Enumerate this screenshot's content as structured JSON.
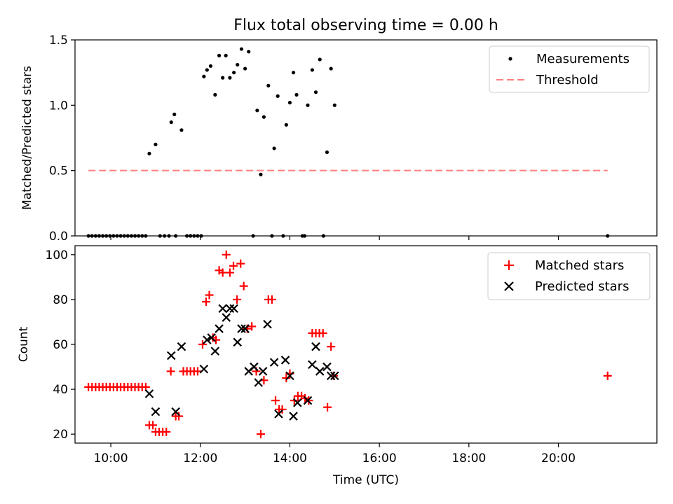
{
  "title": "Flux total observing time = 0.00 h",
  "chart_data": [
    {
      "type": "scatter",
      "ylabel": "Matched/Predicted stars",
      "xlabel": "",
      "xlim": [
        9.2,
        22.2
      ],
      "ylim": [
        0,
        1.5
      ],
      "yticks": [
        0,
        0.5,
        1.0,
        1.5
      ],
      "ytick_labels": [
        "0.0",
        "0.5",
        "1.0",
        "1.5"
      ],
      "xticks": [
        10,
        12,
        14,
        16,
        18,
        20
      ],
      "legend_position": "top-right",
      "threshold": {
        "name": "Threshold",
        "value": 0.5,
        "x": [
          9.5,
          21.1
        ],
        "color": "#ff7f7f"
      },
      "measurements": {
        "name": "Measurements",
        "color": "#000000",
        "points": [
          [
            9.5,
            0
          ],
          [
            9.58,
            0
          ],
          [
            9.66,
            0
          ],
          [
            9.74,
            0
          ],
          [
            9.82,
            0
          ],
          [
            9.9,
            0
          ],
          [
            9.98,
            0
          ],
          [
            10.06,
            0
          ],
          [
            10.14,
            0
          ],
          [
            10.22,
            0
          ],
          [
            10.3,
            0
          ],
          [
            10.38,
            0
          ],
          [
            10.46,
            0
          ],
          [
            10.54,
            0
          ],
          [
            10.62,
            0
          ],
          [
            10.7,
            0
          ],
          [
            10.78,
            0
          ],
          [
            10.86,
            0.63
          ],
          [
            11.0,
            0.7
          ],
          [
            11.1,
            0
          ],
          [
            11.2,
            0
          ],
          [
            11.3,
            0
          ],
          [
            11.35,
            0.87
          ],
          [
            11.42,
            0.93
          ],
          [
            11.58,
            0.81
          ],
          [
            11.45,
            0
          ],
          [
            11.7,
            0
          ],
          [
            11.78,
            0
          ],
          [
            11.86,
            0
          ],
          [
            11.94,
            0
          ],
          [
            12.02,
            0
          ],
          [
            12.08,
            1.22
          ],
          [
            12.15,
            1.27
          ],
          [
            12.23,
            1.3
          ],
          [
            12.33,
            1.08
          ],
          [
            12.42,
            1.38
          ],
          [
            12.5,
            1.21
          ],
          [
            12.57,
            1.38
          ],
          [
            12.66,
            1.21
          ],
          [
            12.75,
            1.25
          ],
          [
            12.83,
            1.31
          ],
          [
            12.92,
            1.43
          ],
          [
            13.0,
            1.28
          ],
          [
            13.08,
            1.41
          ],
          [
            13.18,
            0
          ],
          [
            13.27,
            0.96
          ],
          [
            13.35,
            0.47
          ],
          [
            13.42,
            0.91
          ],
          [
            13.52,
            1.15
          ],
          [
            13.6,
            0
          ],
          [
            13.65,
            0.67
          ],
          [
            13.73,
            1.07
          ],
          [
            13.85,
            0
          ],
          [
            13.92,
            0.85
          ],
          [
            14.0,
            1.02
          ],
          [
            14.08,
            1.25
          ],
          [
            14.15,
            1.08
          ],
          [
            14.28,
            0
          ],
          [
            14.33,
            0
          ],
          [
            14.4,
            1.0
          ],
          [
            14.5,
            1.27
          ],
          [
            14.58,
            1.1
          ],
          [
            14.67,
            1.35
          ],
          [
            14.75,
            0
          ],
          [
            14.83,
            0.64
          ],
          [
            14.92,
            1.28
          ],
          [
            15.0,
            1.0
          ],
          [
            21.1,
            0
          ]
        ]
      }
    },
    {
      "type": "scatter",
      "ylabel": "Count",
      "xlabel": "Time (UTC)",
      "xlim": [
        9.2,
        22.2
      ],
      "ylim": [
        16,
        104
      ],
      "yticks": [
        20,
        40,
        60,
        80,
        100
      ],
      "ytick_labels": [
        "20",
        "40",
        "60",
        "80",
        "100"
      ],
      "xticks": [
        10,
        12,
        14,
        16,
        18,
        20
      ],
      "xtick_labels": [
        "10:00",
        "12:00",
        "14:00",
        "16:00",
        "18:00",
        "20:00"
      ],
      "legend_position": "top-right",
      "series": [
        {
          "name": "Matched stars",
          "marker": "plus",
          "color": "#ff0000",
          "points": [
            [
              9.5,
              41
            ],
            [
              9.58,
              41
            ],
            [
              9.66,
              41
            ],
            [
              9.74,
              41
            ],
            [
              9.82,
              41
            ],
            [
              9.9,
              41
            ],
            [
              9.98,
              41
            ],
            [
              10.06,
              41
            ],
            [
              10.14,
              41
            ],
            [
              10.22,
              41
            ],
            [
              10.3,
              41
            ],
            [
              10.38,
              41
            ],
            [
              10.46,
              41
            ],
            [
              10.54,
              41
            ],
            [
              10.62,
              41
            ],
            [
              10.7,
              41
            ],
            [
              10.78,
              41
            ],
            [
              10.86,
              24
            ],
            [
              10.94,
              24
            ],
            [
              11.0,
              21
            ],
            [
              11.08,
              21
            ],
            [
              11.16,
              21
            ],
            [
              11.24,
              21
            ],
            [
              11.34,
              48
            ],
            [
              11.45,
              28
            ],
            [
              11.52,
              28
            ],
            [
              11.62,
              48
            ],
            [
              11.7,
              48
            ],
            [
              11.78,
              48
            ],
            [
              11.86,
              48
            ],
            [
              11.94,
              48
            ],
            [
              12.05,
              60
            ],
            [
              12.13,
              79
            ],
            [
              12.2,
              82
            ],
            [
              12.28,
              63
            ],
            [
              12.35,
              62
            ],
            [
              12.42,
              93
            ],
            [
              12.5,
              92
            ],
            [
              12.58,
              100
            ],
            [
              12.66,
              92
            ],
            [
              12.74,
              95
            ],
            [
              12.82,
              80
            ],
            [
              12.9,
              96
            ],
            [
              12.97,
              86
            ],
            [
              13.05,
              67
            ],
            [
              13.15,
              68
            ],
            [
              13.25,
              48
            ],
            [
              13.35,
              20
            ],
            [
              13.42,
              44
            ],
            [
              13.52,
              80
            ],
            [
              13.6,
              80
            ],
            [
              13.68,
              35
            ],
            [
              13.76,
              31
            ],
            [
              13.83,
              31
            ],
            [
              13.92,
              45
            ],
            [
              14.0,
              47
            ],
            [
              14.1,
              35
            ],
            [
              14.18,
              37
            ],
            [
              14.26,
              37
            ],
            [
              14.34,
              36
            ],
            [
              14.42,
              35
            ],
            [
              14.5,
              65
            ],
            [
              14.58,
              65
            ],
            [
              14.66,
              65
            ],
            [
              14.74,
              65
            ],
            [
              14.84,
              32
            ],
            [
              14.92,
              59
            ],
            [
              14.98,
              46
            ],
            [
              21.1,
              46
            ]
          ]
        },
        {
          "name": "Predicted stars",
          "marker": "x",
          "color": "#000000",
          "points": [
            [
              10.86,
              38
            ],
            [
              11.0,
              30
            ],
            [
              11.35,
              55
            ],
            [
              11.45,
              30
            ],
            [
              11.58,
              59
            ],
            [
              12.08,
              49
            ],
            [
              12.15,
              62
            ],
            [
              12.25,
              63
            ],
            [
              12.33,
              57
            ],
            [
              12.42,
              67
            ],
            [
              12.5,
              76
            ],
            [
              12.58,
              72
            ],
            [
              12.66,
              76
            ],
            [
              12.75,
              76
            ],
            [
              12.83,
              61
            ],
            [
              12.92,
              67
            ],
            [
              13.0,
              67
            ],
            [
              13.08,
              48
            ],
            [
              13.2,
              50
            ],
            [
              13.3,
              43
            ],
            [
              13.4,
              48
            ],
            [
              13.5,
              69
            ],
            [
              13.65,
              52
            ],
            [
              13.75,
              29
            ],
            [
              13.9,
              53
            ],
            [
              14.0,
              46
            ],
            [
              14.08,
              28
            ],
            [
              14.17,
              34
            ],
            [
              14.4,
              35
            ],
            [
              14.5,
              51
            ],
            [
              14.58,
              59
            ],
            [
              14.67,
              48
            ],
            [
              14.83,
              50
            ],
            [
              14.92,
              46
            ],
            [
              15.0,
              46
            ]
          ]
        }
      ]
    }
  ]
}
